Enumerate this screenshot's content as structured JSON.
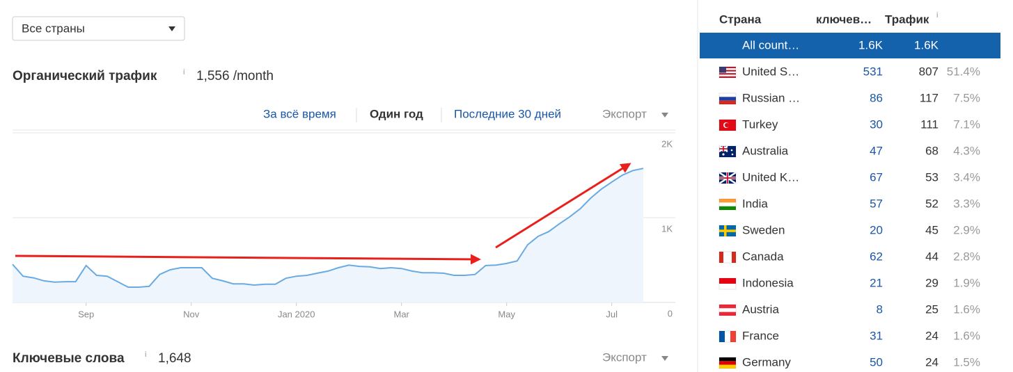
{
  "country_select": "Все страны",
  "organic": {
    "title": "Органический трафик",
    "info": "i",
    "value": "1,556 /month"
  },
  "tabs": [
    "За всё время",
    "Один год",
    "Последние 30 дней"
  ],
  "active_tab": 1,
  "export": "Экспорт",
  "chart_data": {
    "type": "line",
    "categories": [
      null,
      null,
      null,
      null,
      null,
      null,
      null,
      "Sep",
      null,
      null,
      null,
      null,
      null,
      null,
      null,
      null,
      null,
      "Nov",
      null,
      null,
      null,
      null,
      null,
      null,
      null,
      null,
      null,
      "Jan 2020",
      null,
      null,
      null,
      null,
      null,
      null,
      null,
      null,
      null,
      "Mar",
      null,
      null,
      null,
      null,
      null,
      null,
      null,
      null,
      null,
      "May",
      null,
      null,
      null,
      null,
      null,
      null,
      null,
      null,
      null,
      "Jul",
      null,
      null,
      null
    ],
    "values": [
      450,
      310,
      290,
      255,
      240,
      245,
      245,
      435,
      320,
      310,
      245,
      180,
      180,
      190,
      330,
      385,
      410,
      410,
      410,
      285,
      255,
      220,
      220,
      205,
      215,
      215,
      285,
      310,
      320,
      345,
      370,
      410,
      440,
      425,
      420,
      400,
      410,
      400,
      370,
      350,
      350,
      345,
      320,
      320,
      330,
      435,
      440,
      460,
      490,
      680,
      780,
      835,
      925,
      1010,
      1105,
      1230,
      1335,
      1420,
      1500,
      1555,
      1580
    ],
    "color": "#6aaae2",
    "area_color": "#eef5fc",
    "ylim": [
      0,
      2000
    ],
    "yticks": [
      0,
      {
        "value": 1000,
        "label": "1K"
      },
      {
        "value": 2000,
        "label": "2K"
      }
    ],
    "grid": true
  },
  "keywords": {
    "title": "Ключевые слова",
    "info": "i",
    "value": "1,648",
    "export": "Экспорт"
  },
  "table": {
    "headers": [
      "Страна",
      "ключев…",
      "Трафик"
    ],
    "info": "i",
    "selected_row": 0,
    "rows": [
      [
        "All count…",
        "1.6K",
        "1.6K"
      ],
      [
        "United S…",
        531,
        807,
        "51.4%"
      ],
      [
        "Russian …",
        86,
        117,
        "7.5%"
      ],
      [
        "Turkey",
        30,
        111,
        "7.1%"
      ],
      [
        "Australia",
        47,
        68,
        "4.3%"
      ],
      [
        "United K…",
        67,
        53,
        "3.4%"
      ],
      [
        "India",
        57,
        52,
        "3.3%"
      ],
      [
        "Sweden",
        20,
        45,
        "2.9%"
      ],
      [
        "Canada",
        62,
        44,
        "2.8%"
      ],
      [
        "Indonesia",
        21,
        29,
        "1.9%"
      ],
      [
        "Austria",
        8,
        25,
        "1.6%"
      ],
      [
        "France",
        31,
        24,
        "1.6%"
      ],
      [
        "Germany",
        50,
        24,
        "1.5%"
      ]
    ]
  }
}
